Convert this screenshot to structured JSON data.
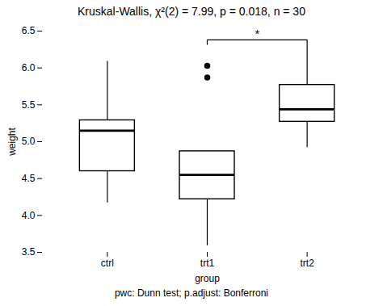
{
  "chart_data": {
    "type": "box",
    "title": "Kruskal-Wallis, χ²(2) = 7.99, p = 0.018, n = 30",
    "xlabel": "group",
    "ylabel": "weight",
    "caption": "pwc: Dunn test; p.adjust: Bonferroni",
    "categories": [
      "ctrl",
      "trt1",
      "trt2"
    ],
    "boxes": [
      {
        "median": 5.15,
        "q1": 4.6,
        "q3": 5.29,
        "whisker_low": 4.17,
        "whisker_high": 6.09,
        "outliers": []
      },
      {
        "median": 4.55,
        "q1": 4.22,
        "q3": 4.87,
        "whisker_low": 3.59,
        "whisker_high": 4.87,
        "outliers": [
          5.87,
          6.03
        ]
      },
      {
        "median": 5.44,
        "q1": 5.27,
        "q3": 5.77,
        "whisker_low": 4.92,
        "whisker_high": 6.31,
        "outliers": []
      }
    ],
    "ylim": [
      3.5,
      6.5
    ],
    "yticks": [
      3.5,
      {
        "value": 4.0,
        "label": "4.0"
      },
      4.5,
      {
        "value": 5.0,
        "label": "5.0"
      },
      5.5,
      {
        "value": 6.0,
        "label": "6.0"
      },
      6.5
    ],
    "grid": false,
    "annotations": [
      {
        "type": "bracket",
        "from": "trt1",
        "to": "trt2",
        "y": 6.38,
        "tick": 0.06,
        "text": "*"
      }
    ]
  }
}
